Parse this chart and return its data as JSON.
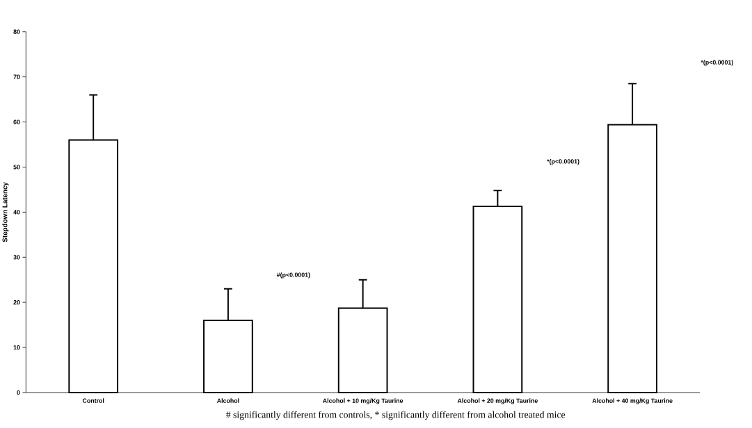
{
  "chart_data": {
    "type": "bar",
    "ylabel": "Stepdown Latency",
    "categories": [
      "Control",
      "Alcohol",
      "Alcohol + 10 mg/Kg Taurine",
      "Alcohol + 20 mg/Kg Taurine",
      "Alcohol + 40 mg/Kg Taurine"
    ],
    "values": [
      56,
      16,
      18.7,
      41.3,
      59.4
    ],
    "errors": [
      [
        56,
        66
      ],
      [
        16,
        23
      ],
      [
        18.7,
        25
      ],
      [
        41.3,
        44.8
      ],
      [
        59.4,
        68.5
      ]
    ],
    "color": "#ffffff",
    "ylim": [
      0,
      80
    ],
    "yticks": [
      0,
      10,
      20,
      30,
      40,
      50,
      60,
      70,
      80
    ],
    "annotations": [
      "#(p<0.0001)",
      "*(p<0.0001)",
      "*(p<0.0001)",
      "# significantly different from controls, * significantly different from alcohol treated mice"
    ]
  }
}
